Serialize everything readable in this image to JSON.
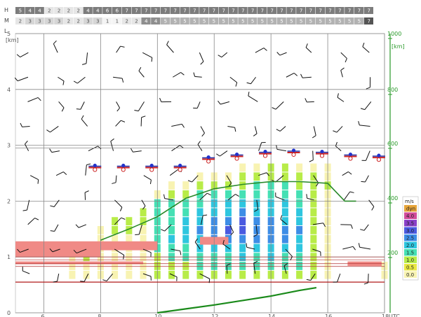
{
  "chart_data": {
    "type": "meteogram",
    "cloud_rows": [
      {
        "label": "H",
        "values": [
          "5",
          "4",
          "4",
          "2",
          "2",
          "2",
          "2",
          "4",
          "4",
          "6",
          "6",
          "7",
          "7",
          "7",
          "7",
          "7",
          "7",
          "7",
          "7",
          "7",
          "7",
          "7",
          "7",
          "7",
          "7",
          "7",
          "7",
          "7",
          "7",
          "7",
          "7",
          "7",
          "7",
          "7",
          "7",
          "7",
          "7"
        ]
      },
      {
        "label": "M",
        "values": [
          "2",
          "3",
          "3",
          "3",
          "3",
          "2",
          "2",
          "3",
          "3",
          "1",
          "1",
          "2",
          "2",
          "4",
          "4",
          "5",
          "5",
          "5",
          "5",
          "5",
          "5",
          "5",
          "5",
          "5",
          "5",
          "5",
          "5",
          "5",
          "5",
          "5",
          "5",
          "5",
          "5",
          "5",
          "5",
          "5",
          "7"
        ]
      },
      {
        "label": "L",
        "values": []
      }
    ],
    "left_axis": {
      "unit": "[km]",
      "ticks": [
        "0",
        "1",
        "2",
        "3",
        "4",
        "5"
      ],
      "ylim": [
        0,
        5
      ]
    },
    "right_axis": {
      "unit": "[km]",
      "ticks": [
        "200",
        "400",
        "600",
        "800",
        "1000"
      ]
    },
    "x_axis": {
      "labels": [
        "6",
        "8",
        "10",
        "12",
        "14",
        "16",
        "18"
      ],
      "unit_label": "UTC"
    },
    "wind_legend": {
      "title": "m/s",
      "items": [
        {
          "label": "dyn",
          "color": "#e7a53a"
        },
        {
          "label": "4.0",
          "color": "#d24b9a"
        },
        {
          "label": "3.5",
          "color": "#8a3fc8"
        },
        {
          "label": "3.0",
          "color": "#4a5ae0"
        },
        {
          "label": "2.5",
          "color": "#3d8de6"
        },
        {
          "label": "2.0",
          "color": "#2ec6df"
        },
        {
          "label": "1.5",
          "color": "#45e0b4"
        },
        {
          "label": "1.0",
          "color": "#b8ec48"
        },
        {
          "label": "0.5",
          "color": "#e9e842"
        },
        {
          "label": "0.0",
          "color": "#f8f3b2"
        }
      ]
    },
    "thermal_tops_km": [
      {
        "x": 7.8,
        "y": 2.6
      },
      {
        "x": 8.8,
        "y": 2.6
      },
      {
        "x": 9.8,
        "y": 2.6
      },
      {
        "x": 10.8,
        "y": 2.6
      },
      {
        "x": 11.8,
        "y": 2.75
      },
      {
        "x": 12.8,
        "y": 2.8
      },
      {
        "x": 13.8,
        "y": 2.85
      },
      {
        "x": 14.8,
        "y": 2.87
      },
      {
        "x": 15.8,
        "y": 2.85
      },
      {
        "x": 16.8,
        "y": 2.8
      },
      {
        "x": 17.8,
        "y": 2.78
      }
    ],
    "boundary_layer_km": [
      {
        "x": 8,
        "y": 1.3
      },
      {
        "x": 9,
        "y": 1.5
      },
      {
        "x": 10,
        "y": 1.72
      },
      {
        "x": 11,
        "y": 2.05
      },
      {
        "x": 12,
        "y": 2.22
      },
      {
        "x": 13,
        "y": 2.3
      },
      {
        "x": 14,
        "y": 2.35
      },
      {
        "x": 15,
        "y": 2.35
      },
      {
        "x": 16,
        "y": 2.32
      },
      {
        "x": 16.6,
        "y": 2.0
      },
      {
        "x": 17,
        "y": 2.0
      }
    ],
    "surface_line_km": [
      {
        "x": 10,
        "y": 0.0
      },
      {
        "x": 11,
        "y": 0.07
      },
      {
        "x": 12,
        "y": 0.14
      },
      {
        "x": 13,
        "y": 0.22
      },
      {
        "x": 14,
        "y": 0.3
      },
      {
        "x": 15,
        "y": 0.4
      },
      {
        "x": 15.6,
        "y": 0.45
      }
    ],
    "wind_columns": [
      {
        "x": 7,
        "cells": [
          0,
          0,
          0,
          0
        ]
      },
      {
        "x": 7.5,
        "cells": [
          0,
          0,
          1,
          1
        ]
      },
      {
        "x": 8,
        "cells": [
          0,
          0,
          0,
          0,
          0,
          0
        ]
      },
      {
        "x": 8.5,
        "cells": [
          0,
          0,
          0,
          0,
          0,
          1,
          1
        ]
      },
      {
        "x": 9,
        "cells": [
          0,
          0,
          0,
          0,
          0,
          1,
          1
        ]
      },
      {
        "x": 9.5,
        "cells": [
          0,
          0,
          0,
          0,
          0,
          0,
          1,
          1
        ]
      },
      {
        "x": 10,
        "cells": [
          1,
          1,
          1,
          2,
          2,
          2,
          2,
          2,
          2,
          0
        ]
      },
      {
        "x": 10.5,
        "cells": [
          1,
          1,
          2,
          2,
          3,
          2,
          2,
          2,
          2,
          1,
          0
        ]
      },
      {
        "x": 11,
        "cells": [
          1,
          1,
          2,
          2,
          3,
          3,
          3,
          2,
          2,
          1,
          0
        ]
      },
      {
        "x": 11.5,
        "cells": [
          1,
          2,
          2,
          3,
          3,
          4,
          3,
          3,
          2,
          2,
          1,
          0
        ]
      },
      {
        "x": 12,
        "cells": [
          1,
          2,
          2,
          3,
          4,
          4,
          4,
          3,
          3,
          2,
          1,
          0
        ]
      },
      {
        "x": 12.5,
        "cells": [
          1,
          2,
          2,
          3,
          4,
          5,
          4,
          3,
          3,
          2,
          1,
          0
        ]
      },
      {
        "x": 13,
        "cells": [
          1,
          2,
          3,
          3,
          4,
          5,
          5,
          4,
          3,
          2,
          1,
          1,
          0
        ]
      },
      {
        "x": 13.5,
        "cells": [
          1,
          2,
          2,
          3,
          4,
          4,
          4,
          3,
          3,
          2,
          2,
          1,
          0
        ]
      },
      {
        "x": 14,
        "cells": [
          1,
          2,
          3,
          3,
          4,
          4,
          4,
          3,
          3,
          2,
          2,
          1,
          1
        ]
      },
      {
        "x": 14.5,
        "cells": [
          1,
          2,
          2,
          3,
          4,
          4,
          3,
          3,
          3,
          2,
          2,
          1,
          1
        ]
      },
      {
        "x": 15,
        "cells": [
          1,
          2,
          2,
          3,
          3,
          4,
          3,
          3,
          2,
          2,
          1,
          1,
          0
        ]
      },
      {
        "x": 15.5,
        "cells": [
          1,
          1,
          1,
          1,
          1,
          1,
          1,
          1,
          1,
          1,
          1,
          1,
          0
        ]
      },
      {
        "x": 16,
        "cells": [
          0,
          0,
          0,
          0,
          0,
          0,
          0,
          0,
          0,
          0,
          1,
          0,
          0
        ]
      },
      {
        "x": 18,
        "cells": [
          0,
          0
        ]
      }
    ]
  }
}
